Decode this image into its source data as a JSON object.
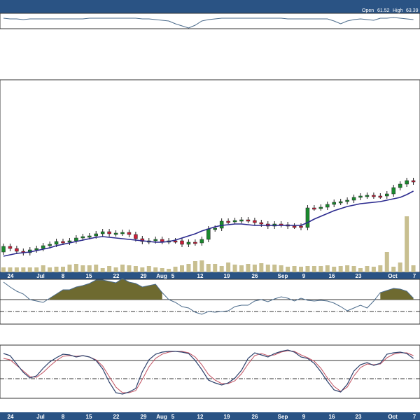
{
  "header": {
    "open_label": "Open",
    "open_value": "61.52",
    "high_label": "High",
    "high_value": "63.39"
  },
  "colors": {
    "band": "#2a5384",
    "up": "#1a8a2e",
    "down": "#cc1f3a",
    "volume": "#c8bf90",
    "ma": "#2b2a8e",
    "line": "#4a6a8a",
    "signal": "#c05060"
  },
  "chart_data": {
    "type": "candlestick",
    "x_tick_labels": [
      "24",
      "Jul",
      "8",
      "15",
      "22",
      "29",
      "Aug",
      "5",
      "12",
      "19",
      "26",
      "Sep",
      "9",
      "16",
      "23",
      "Oct",
      "7"
    ],
    "price": {
      "open": [
        360,
        352,
        355,
        359,
        361,
        357,
        355,
        351,
        349,
        345,
        346,
        344,
        340,
        338,
        337,
        334,
        331,
        334,
        333,
        332,
        335,
        341,
        345,
        344,
        342,
        345,
        344,
        344,
        349,
        346,
        347,
        342,
        327,
        326,
        316,
        316,
        315,
        314,
        315,
        318,
        320,
        323,
        320,
        321,
        323,
        323,
        325,
        297,
        297,
        296,
        292,
        289,
        288,
        286,
        282,
        280,
        279,
        280,
        280,
        277,
        268,
        263,
        258
      ],
      "close": [
        352,
        355,
        359,
        361,
        357,
        355,
        351,
        349,
        345,
        346,
        344,
        340,
        338,
        337,
        334,
        331,
        334,
        333,
        332,
        335,
        341,
        345,
        344,
        342,
        345,
        344,
        344,
        349,
        346,
        347,
        342,
        327,
        326,
        316,
        316,
        315,
        314,
        315,
        318,
        320,
        323,
        320,
        321,
        323,
        323,
        325,
        297,
        297,
        296,
        292,
        289,
        288,
        286,
        282,
        280,
        279,
        280,
        280,
        277,
        268,
        263,
        258,
        260
      ],
      "ma": [
        366,
        364,
        362,
        361,
        360,
        358,
        356,
        354,
        351,
        349,
        347,
        345,
        343,
        341,
        339,
        338,
        339,
        340,
        341,
        342,
        343,
        344,
        345,
        346,
        346,
        345,
        343,
        340,
        337,
        334,
        330,
        327,
        324,
        322,
        321,
        320,
        320,
        321,
        322,
        322,
        322,
        322,
        322,
        322,
        322,
        322,
        318,
        313,
        309,
        305,
        301,
        298,
        295,
        293,
        291,
        290,
        289,
        288,
        286,
        284,
        282,
        278,
        273
      ]
    },
    "volume": [
      382,
      382,
      382,
      382,
      382,
      382,
      379,
      382,
      381,
      381,
      378,
      377,
      379,
      379,
      378,
      383,
      380,
      382,
      378,
      379,
      380,
      382,
      380,
      382,
      383,
      384,
      381,
      379,
      377,
      373,
      372,
      377,
      377,
      380,
      375,
      378,
      379,
      377,
      378,
      376,
      378,
      378,
      379,
      381,
      380,
      381,
      380,
      380,
      380,
      379,
      381,
      380,
      379,
      380,
      383,
      380,
      381,
      379,
      360,
      381,
      375,
      309,
      379
    ],
    "indicator_top": [
      26,
      27,
      27,
      28,
      27,
      27,
      27,
      27,
      27,
      27,
      27,
      27,
      27,
      26,
      26,
      26,
      26,
      26,
      26,
      26,
      26,
      27,
      27,
      28,
      29,
      30,
      34,
      37,
      40,
      36,
      30,
      28,
      27,
      26,
      26,
      26,
      26,
      26,
      26,
      26,
      26,
      26,
      26,
      27,
      27,
      27,
      27,
      27,
      27,
      27,
      30,
      34,
      30,
      28,
      27,
      28,
      29,
      26,
      26,
      25,
      26,
      27,
      28
    ],
    "indicator_mid": [
      403,
      410,
      416,
      420,
      428,
      430,
      432,
      426,
      420,
      414,
      414,
      410,
      408,
      405,
      400,
      400,
      402,
      404,
      398,
      403,
      405,
      410,
      408,
      406,
      418,
      428,
      432,
      438,
      440,
      446,
      449,
      445,
      446,
      445,
      444,
      438,
      436,
      436,
      430,
      428,
      431,
      427,
      424,
      426,
      430,
      426,
      429,
      430,
      429,
      430,
      433,
      438,
      444,
      440,
      436,
      440,
      430,
      418,
      415,
      412,
      413,
      416,
      426
    ],
    "stochastic_k": [
      505,
      508,
      520,
      532,
      540,
      537,
      526,
      517,
      511,
      506,
      507,
      510,
      508,
      510,
      515,
      527,
      546,
      561,
      563,
      560,
      555,
      531,
      514,
      506,
      503,
      502,
      502,
      503,
      505,
      515,
      528,
      543,
      547,
      550,
      547,
      540,
      529,
      512,
      504,
      507,
      510,
      505,
      502,
      500,
      503,
      510,
      512,
      519,
      531,
      545,
      557,
      560,
      549,
      530,
      521,
      518,
      522,
      519,
      506,
      504,
      503,
      505,
      512
    ],
    "stochastic_d": [
      512,
      514,
      522,
      530,
      538,
      539,
      532,
      523,
      515,
      509,
      508,
      509,
      508,
      510,
      514,
      523,
      538,
      553,
      561,
      561,
      558,
      542,
      524,
      512,
      506,
      503,
      502,
      502,
      504,
      510,
      521,
      535,
      543,
      548,
      548,
      544,
      534,
      520,
      508,
      505,
      508,
      507,
      503,
      501,
      502,
      507,
      511,
      516,
      526,
      540,
      552,
      559,
      553,
      537,
      525,
      520,
      521,
      520,
      511,
      506,
      504,
      504,
      508
    ]
  }
}
